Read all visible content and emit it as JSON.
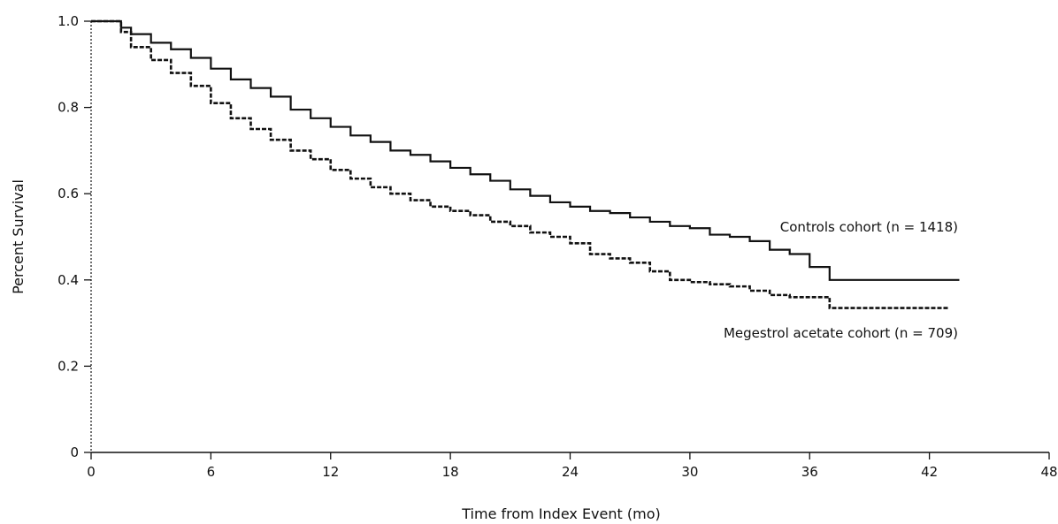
{
  "chart_data": {
    "type": "line",
    "xlabel": "Time from Index Event (mo)",
    "ylabel": "Percent Survival",
    "xlim": [
      0,
      48
    ],
    "ylim": [
      0,
      1.0
    ],
    "xticks": [
      0,
      6,
      12,
      18,
      24,
      30,
      36,
      42,
      48
    ],
    "yticks": [
      0,
      0.2,
      0.4,
      0.6,
      0.8,
      1.0
    ],
    "xtick_labels": [
      "0",
      "6",
      "12",
      "18",
      "24",
      "30",
      "36",
      "42",
      "48"
    ],
    "ytick_labels": [
      "0",
      "0.2",
      "0.4",
      "0.6",
      "0.8",
      "1.0"
    ],
    "step": true,
    "grid": false,
    "series": [
      {
        "name": "Controls cohort (n = 1418)",
        "style": "solid",
        "x": [
          0,
          1,
          1.5,
          2,
          3,
          4,
          5,
          6,
          7,
          8,
          9,
          10,
          11,
          12,
          13,
          14,
          15,
          16,
          17,
          18,
          19,
          20,
          21,
          22,
          23,
          24,
          25,
          26,
          27,
          28,
          29,
          30,
          31,
          32,
          33,
          34,
          35,
          36,
          37,
          38,
          40,
          42,
          43.5
        ],
        "values": [
          1.0,
          1.0,
          0.985,
          0.97,
          0.95,
          0.935,
          0.915,
          0.89,
          0.865,
          0.845,
          0.825,
          0.795,
          0.775,
          0.755,
          0.735,
          0.72,
          0.7,
          0.69,
          0.675,
          0.66,
          0.645,
          0.63,
          0.61,
          0.595,
          0.58,
          0.57,
          0.56,
          0.555,
          0.545,
          0.535,
          0.525,
          0.52,
          0.505,
          0.5,
          0.49,
          0.47,
          0.46,
          0.43,
          0.4,
          0.4,
          0.4,
          0.4,
          0.4
        ]
      },
      {
        "name": "Megestrol acetate cohort (n = 709)",
        "style": "dashed",
        "x": [
          0,
          1,
          1.5,
          2,
          3,
          4,
          5,
          6,
          7,
          8,
          9,
          10,
          11,
          12,
          13,
          14,
          15,
          16,
          17,
          18,
          19,
          20,
          21,
          22,
          23,
          24,
          25,
          26,
          27,
          28,
          29,
          30,
          31,
          32,
          33,
          34,
          35,
          36,
          37,
          38,
          40,
          42,
          43
        ],
        "values": [
          1.0,
          1.0,
          0.975,
          0.94,
          0.91,
          0.88,
          0.85,
          0.81,
          0.775,
          0.75,
          0.725,
          0.7,
          0.68,
          0.655,
          0.635,
          0.615,
          0.6,
          0.585,
          0.57,
          0.56,
          0.55,
          0.535,
          0.525,
          0.51,
          0.5,
          0.485,
          0.46,
          0.45,
          0.44,
          0.42,
          0.4,
          0.395,
          0.39,
          0.385,
          0.375,
          0.365,
          0.36,
          0.36,
          0.335,
          0.335,
          0.335,
          0.335,
          0.335
        ]
      }
    ]
  }
}
